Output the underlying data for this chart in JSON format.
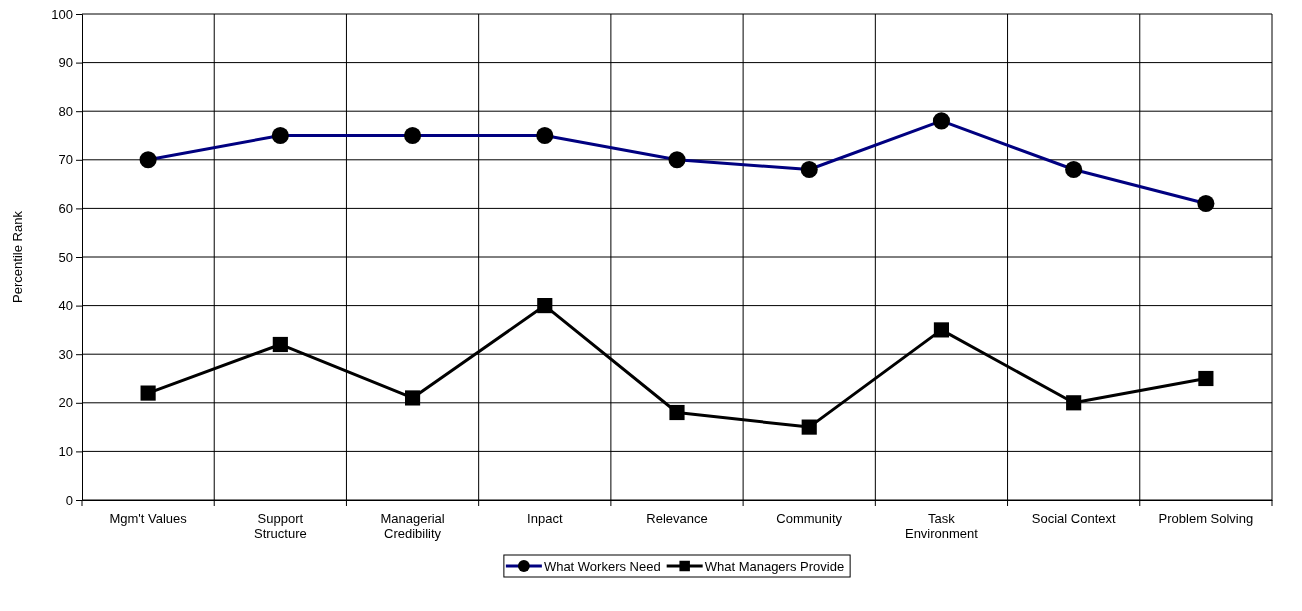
{
  "chart_data": {
    "type": "line",
    "ylabel": "Percentile Rank",
    "categories": [
      "Mgm't Values",
      "Support Structure",
      "Managerial Credibility",
      "Inpact",
      "Relevance",
      "Community",
      "Task Environment",
      "Social Context",
      "Problem Solving"
    ],
    "series": [
      {
        "name": "What Workers Need",
        "color": "#000080",
        "marker": "circle",
        "values": [
          70,
          75,
          75,
          75,
          70,
          68,
          78,
          68,
          61
        ]
      },
      {
        "name": "What Managers Provide",
        "color": "#000000",
        "marker": "square",
        "values": [
          22,
          32,
          21,
          40,
          18,
          15,
          35,
          20,
          25
        ]
      }
    ],
    "ylim": [
      0,
      100
    ],
    "yticks": [
      0,
      10,
      20,
      30,
      40,
      50,
      60,
      70,
      80,
      90,
      100
    ],
    "grid": true,
    "legend": "bottom",
    "line_style": "solid"
  }
}
